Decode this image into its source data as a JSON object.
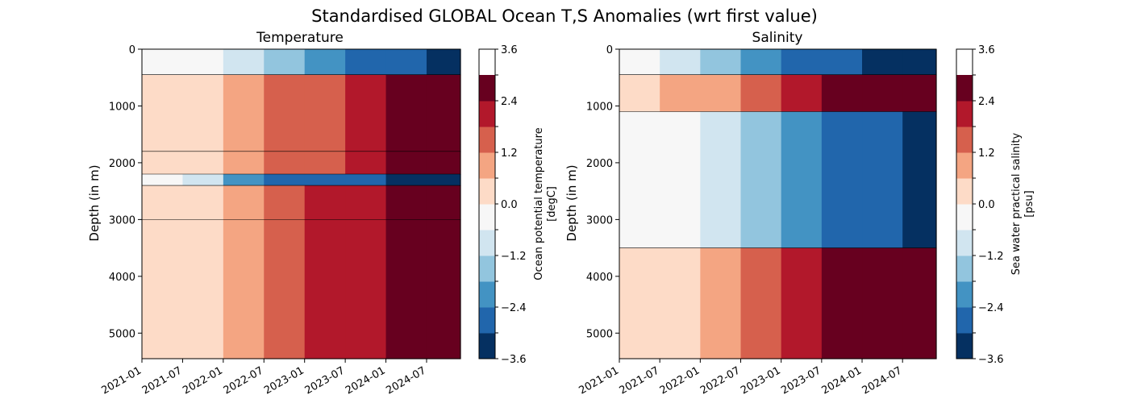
{
  "figure": {
    "title": "Standardised GLOBAL Ocean T,S Anomalies (wrt first value)"
  },
  "colorbar": {
    "levels": [
      -3.6,
      -3.0,
      -2.4,
      -1.8,
      -1.2,
      -0.6,
      0.0,
      0.6,
      1.2,
      1.8,
      2.4,
      3.0,
      3.6
    ],
    "colors": [
      "#053061",
      "#2166ac",
      "#4393c3",
      "#92c5de",
      "#d1e5f0",
      "#f7f7f7",
      "#fddbc7",
      "#f4a582",
      "#d6604d",
      "#b2182b",
      "#67001f"
    ],
    "tick_labels": [
      "−3.6",
      "−2.4",
      "−1.2",
      "0.0",
      "1.2",
      "2.4",
      "3.6"
    ]
  },
  "chart_data": [
    {
      "type": "heatmap",
      "title": "Temperature",
      "xlabel": "",
      "ylabel": "Depth (in m)",
      "colorbar_label_lines": [
        "Ocean potential temperature",
        "[degC]"
      ],
      "x_tick_labels": [
        "2021-01",
        "2021-07",
        "2022-01",
        "2022-07",
        "2023-01",
        "2023-07",
        "2024-01",
        "2024-07"
      ],
      "y_tick_labels": [
        "0",
        "1000",
        "2000",
        "3000",
        "4000",
        "5000"
      ],
      "ylim": [
        5450,
        0
      ],
      "x_months_since_2021_01": [
        0,
        6,
        12,
        18,
        24,
        30,
        36,
        42,
        47
      ],
      "depth_bands": [
        {
          "depth_m": [
            0,
            450
          ],
          "value_by_time": [
            0.0,
            -0.3,
            -0.9,
            -1.4,
            -2.0,
            -2.4,
            -2.8,
            -3.1,
            -3.2
          ]
        },
        {
          "depth_m": [
            450,
            1800
          ],
          "value_by_time": [
            0.0,
            0.3,
            0.7,
            1.1,
            1.5,
            2.0,
            2.4,
            2.8,
            3.0
          ]
        },
        {
          "depth_m": [
            1800,
            2200
          ],
          "value_by_time": [
            0.0,
            0.2,
            0.6,
            1.0,
            1.4,
            1.9,
            2.3,
            2.7,
            2.9
          ]
        },
        {
          "depth_m": [
            2200,
            2400
          ],
          "value_by_time": [
            0.0,
            -0.6,
            -1.5,
            -2.2,
            -2.6,
            -2.9,
            -3.1,
            -3.3,
            -3.4
          ]
        },
        {
          "depth_m": [
            2400,
            3000
          ],
          "value_by_time": [
            0.0,
            0.3,
            0.7,
            1.1,
            1.6,
            2.0,
            2.4,
            2.8,
            3.0
          ]
        },
        {
          "depth_m": [
            3000,
            5450
          ],
          "value_by_time": [
            0.0,
            0.3,
            0.7,
            1.1,
            1.6,
            2.0,
            2.4,
            2.8,
            3.0
          ]
        }
      ]
    },
    {
      "type": "heatmap",
      "title": "Salinity",
      "xlabel": "",
      "ylabel": "Depth (in m)",
      "colorbar_label_lines": [
        "Sea water practical salinity",
        "[psu]"
      ],
      "x_tick_labels": [
        "2021-01",
        "2021-07",
        "2022-01",
        "2022-07",
        "2023-01",
        "2023-07",
        "2024-01",
        "2024-07"
      ],
      "y_tick_labels": [
        "0",
        "1000",
        "2000",
        "3000",
        "4000",
        "5000"
      ],
      "ylim": [
        5450,
        0
      ],
      "x_months_since_2021_01": [
        0,
        6,
        12,
        18,
        24,
        30,
        36,
        42,
        47
      ],
      "depth_bands": [
        {
          "depth_m": [
            0,
            450
          ],
          "value_by_time": [
            0.0,
            -0.6,
            -1.2,
            -1.7,
            -2.2,
            -2.6,
            -3.0,
            -3.2,
            -3.3
          ]
        },
        {
          "depth_m": [
            450,
            1100
          ],
          "value_by_time": [
            0.0,
            0.4,
            0.8,
            1.3,
            1.8,
            2.2,
            2.6,
            2.9,
            3.0
          ]
        },
        {
          "depth_m": [
            1100,
            3500
          ],
          "value_by_time": [
            0.0,
            -0.3,
            -0.8,
            -1.3,
            -1.8,
            -2.3,
            -2.7,
            -3.0,
            -3.1
          ]
        },
        {
          "depth_m": [
            3500,
            5450
          ],
          "value_by_time": [
            0.0,
            0.3,
            0.8,
            1.3,
            1.8,
            2.3,
            2.7,
            3.0,
            3.1
          ]
        }
      ]
    }
  ]
}
